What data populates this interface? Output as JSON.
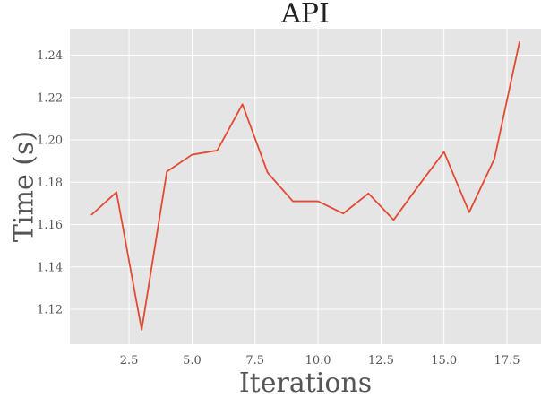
{
  "chart_data": {
    "type": "line",
    "title": "API",
    "xlabel": "Iterations",
    "ylabel": "Time (s)",
    "xlim": [
      0.15,
      18.85
    ],
    "ylim": [
      1.1035,
      1.2525
    ],
    "xticks": [
      2.5,
      5.0,
      7.5,
      10.0,
      12.5,
      15.0,
      17.5
    ],
    "xtick_labels": [
      "2.5",
      "5.0",
      "7.5",
      "10.0",
      "12.5",
      "15.0",
      "17.5"
    ],
    "yticks": [
      1.12,
      1.14,
      1.16,
      1.18,
      1.2,
      1.22,
      1.24
    ],
    "ytick_labels": [
      "1.12",
      "1.14",
      "1.16",
      "1.18",
      "1.20",
      "1.22",
      "1.24"
    ],
    "grid": true,
    "background_color": "#e5e5e5",
    "grid_color": "#ffffff",
    "series": [
      {
        "color": "#e24a33",
        "x": [
          1,
          2,
          3,
          4,
          5,
          6,
          7,
          8,
          9,
          10,
          11,
          12,
          13,
          14,
          15,
          16,
          17,
          18
        ],
        "y": [
          1.1645,
          1.1753,
          1.1103,
          1.185,
          1.193,
          1.195,
          1.2168,
          1.1845,
          1.171,
          1.171,
          1.1652,
          1.1747,
          1.1622,
          1.1785,
          1.1943,
          1.1658,
          1.191,
          1.2465
        ]
      }
    ]
  }
}
